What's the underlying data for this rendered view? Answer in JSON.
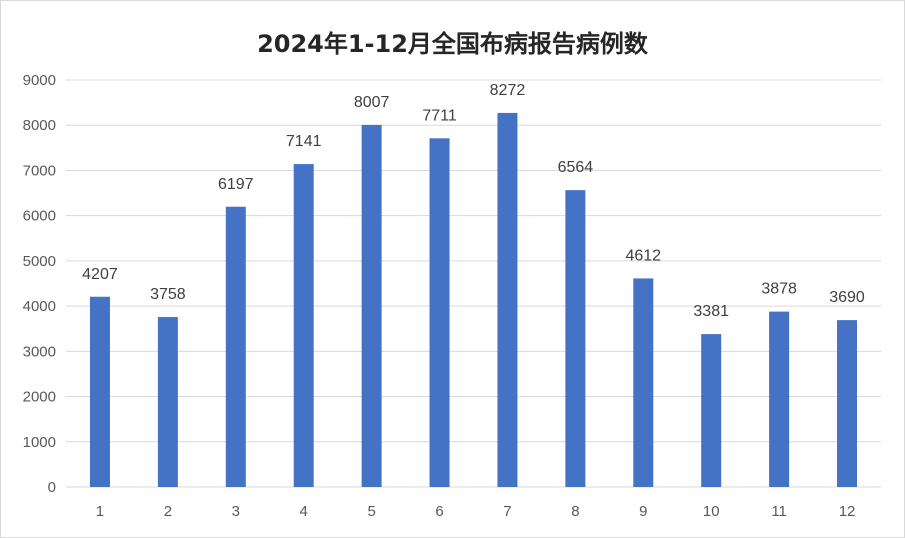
{
  "chart_data": {
    "type": "bar",
    "title": "2024年1-12月全国布病报告病例数",
    "categories": [
      "1",
      "2",
      "3",
      "4",
      "5",
      "6",
      "7",
      "8",
      "9",
      "10",
      "11",
      "12"
    ],
    "values": [
      4207,
      3758,
      6197,
      7141,
      8007,
      7711,
      8272,
      6564,
      4612,
      3381,
      3878,
      3690
    ],
    "ylim": [
      0,
      9000
    ],
    "yticks": [
      0,
      1000,
      2000,
      3000,
      4000,
      5000,
      6000,
      7000,
      8000,
      9000
    ],
    "grid": true,
    "data_labels": true,
    "bar_color": "#4472c4",
    "grid_color": "#d9d9d9"
  }
}
